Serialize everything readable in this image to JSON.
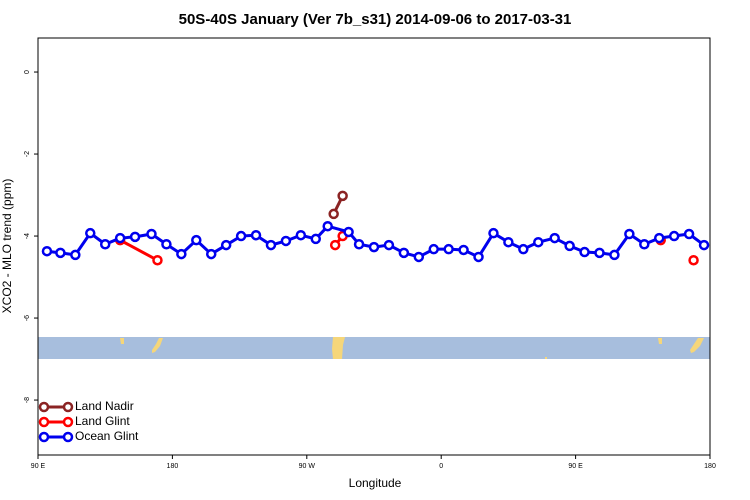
{
  "chart_data": {
    "type": "line",
    "title": "50S-40S January (Ver 7b_s31)   2014-09-06 to 2017-03-31",
    "x_label": "Longitude",
    "y_label": "XCO2 - MLO trend (ppm)",
    "xlim": [
      90,
      540
    ],
    "ylim": [
      -9.34,
      0.83
    ],
    "xticks": [
      {
        "value": 90,
        "label": "90 E"
      },
      180,
      {
        "value": 270,
        "label": "90 W"
      },
      {
        "value": 360,
        "label": "0"
      },
      {
        "value": 450,
        "label": "90 E"
      },
      {
        "value": 540,
        "label": "180"
      }
    ],
    "yticks": [
      0,
      -2,
      -4,
      -6,
      -8
    ],
    "legend": "bottom-left",
    "series": [
      {
        "name": "Land Nadir",
        "color": "#8b2323",
        "x": [
          288,
          294
        ],
        "values": [
          -3.46,
          -3.02
        ]
      },
      {
        "name": "Land Glint",
        "color": "#ff0000",
        "x": [
          145,
          170,
          null,
          289,
          294,
          null,
          507,
          null,
          529
        ],
        "values": [
          -4.1,
          -4.59,
          null,
          -4.22,
          -4.0,
          null,
          -4.1,
          null,
          -4.59
        ]
      },
      {
        "name": "Ocean Glint",
        "color": "#0000ee",
        "x": [
          96,
          105,
          115,
          125,
          135,
          145,
          155,
          166,
          176,
          186,
          196,
          206,
          216,
          226,
          236,
          246,
          256,
          266,
          276,
          284,
          298,
          305,
          315,
          325,
          335,
          345,
          355,
          365,
          375,
          385,
          395,
          405,
          415,
          425,
          436,
          446,
          456,
          466,
          476,
          486,
          496,
          506,
          516,
          526,
          536
        ],
        "values": [
          -4.37,
          -4.41,
          -4.46,
          -3.93,
          -4.2,
          -4.05,
          -4.02,
          -3.95,
          -4.2,
          -4.44,
          -4.1,
          -4.44,
          -4.22,
          -4.0,
          -3.98,
          -4.22,
          -4.12,
          -3.98,
          -4.07,
          -3.76,
          -3.9,
          -4.2,
          -4.27,
          -4.22,
          -4.41,
          -4.51,
          -4.32,
          -4.32,
          -4.34,
          -4.51,
          -3.93,
          -4.15,
          -4.32,
          -4.15,
          -4.05,
          -4.24,
          -4.39,
          -4.41,
          -4.46,
          -3.95,
          -4.2,
          -4.05,
          -4.0,
          -3.95,
          -4.22
        ]
      }
    ]
  }
}
